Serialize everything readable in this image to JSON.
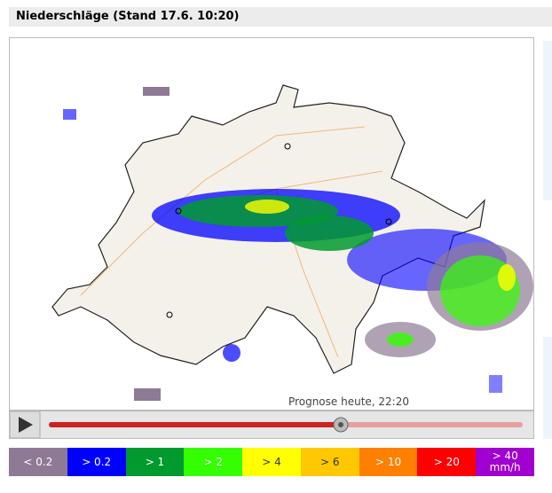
{
  "header": {
    "title": "Niederschläge (Stand 17.6. 10:20)"
  },
  "map": {
    "caption": "Prognose heute, 22:20"
  },
  "legend": {
    "items": [
      {
        "label": "< 0.2",
        "color": "#8e7a95"
      },
      {
        "label": "> 0.2",
        "color": "#0000ff"
      },
      {
        "label": "> 1",
        "color": "#009a2e"
      },
      {
        "label": "> 2",
        "color": "#33ff00"
      },
      {
        "label": "> 4",
        "color": "#ffff00"
      },
      {
        "label": "> 6",
        "color": "#ffc800"
      },
      {
        "label": "> 10",
        "color": "#ff7f00"
      },
      {
        "label": "> 20",
        "color": "#ff0000"
      },
      {
        "label": "> 40 mm/h",
        "color": "#a000d0"
      }
    ]
  }
}
